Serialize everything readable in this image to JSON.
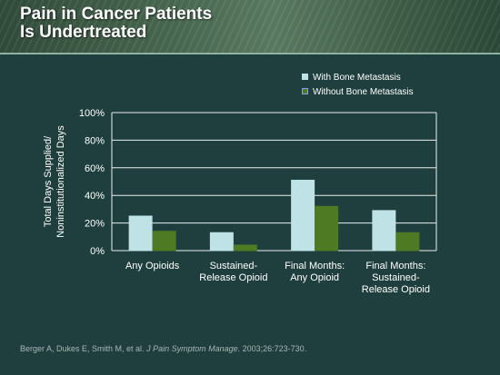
{
  "slide": {
    "title_line1": "Pain in Cancer Patients",
    "title_line2": "Is Undertreated"
  },
  "citation": {
    "authors": "Berger A, Dukes E, Smith M, et al.",
    "journal": "J Pain Symptom Manage",
    "details": ". 2003;26:723-730."
  },
  "chart_data": {
    "type": "bar",
    "categories": [
      [
        "Any Opioids"
      ],
      [
        "Sustained-",
        "Release Opioid"
      ],
      [
        "Final Months:",
        "Any Opioid"
      ],
      [
        "Final Months:",
        "Sustained-",
        "Release Opioid"
      ]
    ],
    "series": [
      {
        "name": "With Bone Metastasis",
        "values": [
          25,
          13,
          51,
          29
        ],
        "color": "#bfe2e6"
      },
      {
        "name": "Without Bone Metastasis",
        "values": [
          14,
          4,
          32,
          13
        ],
        "color": "#4e7a24"
      }
    ],
    "ylabel_lines": [
      "Total Days Supplied/",
      "Noninstitutionalized Days"
    ],
    "ylim": [
      0,
      100
    ],
    "yticks": [
      0,
      20,
      40,
      60,
      80,
      100
    ],
    "ytick_labels": [
      "0%",
      "20%",
      "40%",
      "60%",
      "80%",
      "100%"
    ],
    "grid": true,
    "legend_position": "top-right",
    "colors": {
      "axis": "#e8eeee",
      "gridline": "#e8eeee",
      "text": "#ffffff"
    }
  }
}
